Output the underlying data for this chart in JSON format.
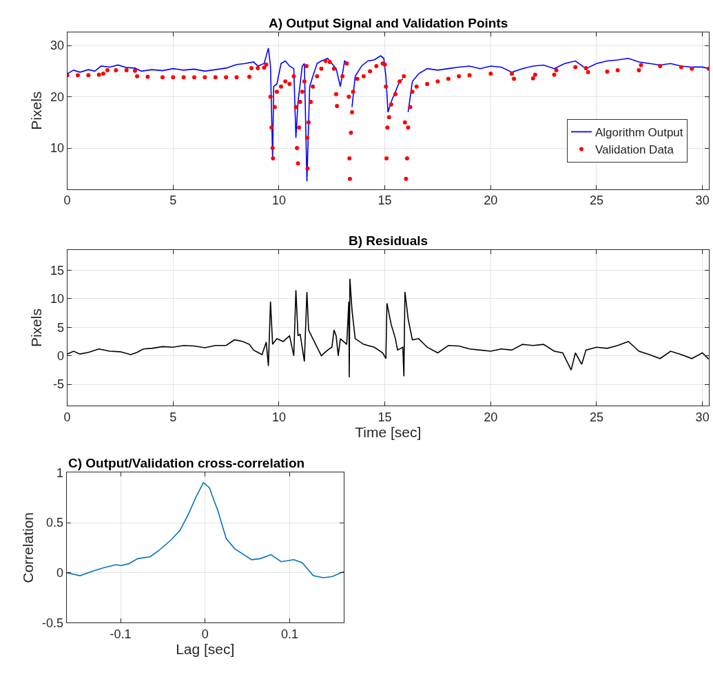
{
  "chart_data": [
    {
      "type": "line",
      "title": "A) Output Signal and Validation Points",
      "ylabel": "Pixels",
      "xlim": [
        0,
        30.3
      ],
      "xticks": [
        0,
        5,
        10,
        15,
        20,
        25,
        30
      ],
      "ylim": [
        2,
        32.6
      ],
      "yticks": [
        10,
        20,
        30
      ],
      "grid": true,
      "legend": "bottom right",
      "series": [
        {
          "name": "Algorithm Output",
          "type": "line",
          "color": "#0000ff",
          "x": [
            0,
            0.3,
            0.6,
            1.0,
            1.3,
            1.6,
            2.0,
            2.4,
            2.8,
            3.2,
            3.5,
            4.0,
            4.5,
            5.0,
            5.5,
            6.0,
            6.5,
            7.0,
            7.5,
            8.0,
            8.4,
            8.8,
            9.0,
            9.3,
            9.5,
            9.6,
            9.7,
            9.75,
            9.9,
            10.1,
            10.3,
            10.5,
            10.7,
            10.8,
            10.9,
            11.1,
            11.2,
            11.32,
            11.45,
            11.6,
            11.8,
            12.0,
            12.3,
            12.5,
            12.7,
            12.9,
            13.1,
            13.25,
            13.32,
            13.45,
            13.6,
            13.9,
            14.2,
            14.5,
            14.8,
            14.95,
            15.05,
            15.15,
            15.3,
            15.5,
            15.7,
            15.85,
            15.95,
            16.1,
            16.3,
            16.6,
            17,
            17.5,
            18,
            18.5,
            19,
            19.5,
            20,
            20.5,
            21,
            21.5,
            22,
            22.5,
            23,
            23.5,
            24,
            24.5,
            25,
            25.5,
            26,
            26.5,
            27,
            27.5,
            28,
            28.5,
            29,
            29.5,
            30,
            30.3
          ],
          "values": [
            24.5,
            25.2,
            24.8,
            25.3,
            25.0,
            26.0,
            25.8,
            26.2,
            25.7,
            25.6,
            25.0,
            25.3,
            25.1,
            25.5,
            25.2,
            25.4,
            25.0,
            25.3,
            25.6,
            26.3,
            26.5,
            26.8,
            26.0,
            26.5,
            29.5,
            26,
            8,
            22,
            22.5,
            26.5,
            27,
            26,
            25.5,
            12,
            19,
            26,
            26.5,
            3.5,
            22,
            24,
            26.5,
            27,
            27.5,
            26.5,
            25.5,
            22,
            27,
            26.5,
            null,
            18,
            24,
            26,
            27,
            27.2,
            28,
            27.5,
            24,
            17,
            19,
            21,
            23,
            23.5,
            null,
            17,
            23,
            24.5,
            25.5,
            25.2,
            25.5,
            25.8,
            26,
            25.5,
            26,
            25.8,
            24.8,
            25.5,
            26,
            26.2,
            25.5,
            26.5,
            27,
            25.5,
            26.5,
            27,
            27.2,
            27.5,
            26.8,
            26.5,
            26.2,
            26.5,
            26,
            25.8,
            25.8,
            25.5
          ]
        },
        {
          "name": "Validation Data",
          "type": "scatter",
          "marker": "circle",
          "color": "#ff0000",
          "x": [
            0,
            0.5,
            1.0,
            1.5,
            1.7,
            1.9,
            2.3,
            2.8,
            3.2,
            3.3,
            3.8,
            4.5,
            5.0,
            5.5,
            6.0,
            6.5,
            7.0,
            7.5,
            8.0,
            8.6,
            8.7,
            9.0,
            9.3,
            9.4,
            9.6,
            9.65,
            9.7,
            9.72,
            9.8,
            9.9,
            10.1,
            10.3,
            10.5,
            10.7,
            10.8,
            10.85,
            10.9,
            10.95,
            11.0,
            11.1,
            11.2,
            11.3,
            11.33,
            11.35,
            11.4,
            11.5,
            11.6,
            11.8,
            12.0,
            12.2,
            12.4,
            12.6,
            12.7,
            12.74,
            13.0,
            13.2,
            13.3,
            13.33,
            13.35,
            13.4,
            13.45,
            13.5,
            13.7,
            14.0,
            14.3,
            14.6,
            14.9,
            15.0,
            15.05,
            15.08,
            15.12,
            15.2,
            15.3,
            15.5,
            15.7,
            15.9,
            15.95,
            16.0,
            16.05,
            16.1,
            16.2,
            16.3,
            16.5,
            17,
            17.5,
            18,
            18.5,
            19,
            20,
            21,
            21.1,
            22,
            22.1,
            23.0,
            23.1,
            24,
            24.5,
            24.6,
            25.5,
            26,
            27,
            27.1,
            28,
            29,
            29.5,
            30.3
          ],
          "values": [
            24.2,
            24.2,
            24.2,
            24.3,
            24.5,
            25.2,
            25.2,
            25.2,
            25.1,
            24.0,
            23.9,
            23.8,
            23.8,
            23.8,
            23.8,
            23.8,
            23.8,
            23.8,
            23.8,
            23.9,
            25.6,
            25.6,
            25.7,
            26.3,
            20,
            14,
            10,
            8,
            18,
            21,
            22,
            23,
            22.5,
            24,
            18,
            10,
            7,
            14,
            19,
            21,
            23,
            26,
            12,
            6,
            15,
            19,
            22,
            24,
            25.5,
            27,
            26.8,
            25.5,
            20.5,
            18.2,
            24,
            26.5,
            20,
            8,
            4,
            13,
            17,
            21,
            23.5,
            24,
            25,
            26,
            26.5,
            26.3,
            22,
            8,
            14,
            16,
            18.5,
            20.5,
            23,
            24,
            15,
            4,
            8,
            14,
            18,
            21,
            22,
            22.5,
            23,
            23.5,
            24,
            24.2,
            24.5,
            24.5,
            23.5,
            23.6,
            24.3,
            24.3,
            25.2,
            25.8,
            25.6,
            24.8,
            24.9,
            25.2,
            25.2,
            26.2,
            26,
            25.8,
            25.5,
            25.5
          ]
        }
      ]
    },
    {
      "type": "line",
      "title": "B) Residuals",
      "xlabel": "Time [sec]",
      "ylabel": "Pixels",
      "xlim": [
        0,
        30.3
      ],
      "xticks": [
        0,
        5,
        10,
        15,
        20,
        25,
        30
      ],
      "ylim": [
        -8.8,
        18.6
      ],
      "yticks": [
        -5,
        0,
        5,
        10,
        15
      ],
      "grid": true,
      "series": [
        {
          "color": "#000000",
          "x": [
            0,
            0.3,
            0.6,
            1,
            1.5,
            2,
            2.5,
            3,
            3.3,
            3.6,
            4,
            4.5,
            5,
            5.5,
            6,
            6.5,
            7,
            7.5,
            7.9,
            8.3,
            8.6,
            8.8,
            9.2,
            9.4,
            9.5,
            9.6,
            9.7,
            9.9,
            10.2,
            10.5,
            10.7,
            10.8,
            10.9,
            11.0,
            11.2,
            11.32,
            11.4,
            11.6,
            12.0,
            12.3,
            12.5,
            12.6,
            12.7,
            12.8,
            12.9,
            13.2,
            13.3,
            13.32,
            13.35,
            13.45,
            13.6,
            14,
            14.5,
            14.9,
            15.05,
            15.1,
            15.3,
            15.5,
            15.6,
            15.85,
            15.9,
            15.95,
            16.1,
            16.3,
            16.6,
            17,
            17.5,
            18,
            18.5,
            19,
            19.5,
            20,
            20.5,
            21,
            21.5,
            22,
            22.5,
            23,
            23.4,
            23.8,
            24,
            24.3,
            24.5,
            25,
            25.5,
            26,
            26.5,
            26.8,
            27,
            27.5,
            28,
            28.5,
            29,
            29.5,
            30,
            30.3
          ],
          "values": [
            0.3,
            0.8,
            0.3,
            0.6,
            1.2,
            0.8,
            0.7,
            0.2,
            0.6,
            1.2,
            1.3,
            1.6,
            1.5,
            1.8,
            1.7,
            1.4,
            1.8,
            1.8,
            2.8,
            2.5,
            2.0,
            1.0,
            0.2,
            2.4,
            -1.8,
            9.5,
            2.0,
            3.0,
            2.5,
            3.5,
            0,
            11.5,
            3.5,
            3.8,
            -1.0,
            11.2,
            4.5,
            3.0,
            0.0,
            1.0,
            1.5,
            4.5,
            3.5,
            0,
            3.0,
            2.0,
            9.5,
            -3.8,
            13.5,
            8.0,
            3.0,
            2.0,
            1.5,
            0.5,
            -0.5,
            9.2,
            5.5,
            3.0,
            1.0,
            1.5,
            -3.6,
            11.2,
            6.5,
            2.8,
            3.0,
            1.5,
            0.5,
            1.8,
            1.7,
            1.2,
            1.0,
            0.8,
            1.2,
            1.0,
            2.0,
            1.8,
            2.0,
            0.8,
            0.5,
            -2.5,
            0.5,
            -1.5,
            1.0,
            1.5,
            1.3,
            1.8,
            2.5,
            1.5,
            0.8,
            0.2,
            -0.5,
            0.8,
            0.2,
            -0.5,
            0.5,
            -0.6
          ]
        }
      ]
    },
    {
      "type": "line",
      "title": "C) Output/Validation cross-correlation",
      "xlabel": "Lag [sec]",
      "ylabel": "Correlation",
      "xlim": [
        -0.164,
        0.164
      ],
      "xticks": [
        -0.1,
        0,
        0.1
      ],
      "ylim": [
        -0.5,
        1
      ],
      "yticks": [
        -0.5,
        0,
        0.5,
        1
      ],
      "grid": true,
      "series": [
        {
          "color": "#0072bd",
          "x": [
            -0.164,
            -0.148,
            -0.135,
            -0.12,
            -0.105,
            -0.1,
            -0.09,
            -0.08,
            -0.065,
            -0.055,
            -0.04,
            -0.03,
            -0.02,
            -0.01,
            -0.002,
            0.005,
            0.015,
            0.025,
            0.035,
            0.055,
            0.065,
            0.078,
            0.09,
            0.105,
            0.115,
            0.128,
            0.14,
            0.15,
            0.164
          ],
          "values": [
            0,
            -0.03,
            0.01,
            0.05,
            0.08,
            0.07,
            0.09,
            0.14,
            0.16,
            0.22,
            0.33,
            0.42,
            0.58,
            0.77,
            0.9,
            0.85,
            0.62,
            0.34,
            0.24,
            0.13,
            0.14,
            0.18,
            0.11,
            0.13,
            0.1,
            -0.03,
            -0.05,
            -0.04,
            0.01
          ]
        }
      ]
    }
  ]
}
